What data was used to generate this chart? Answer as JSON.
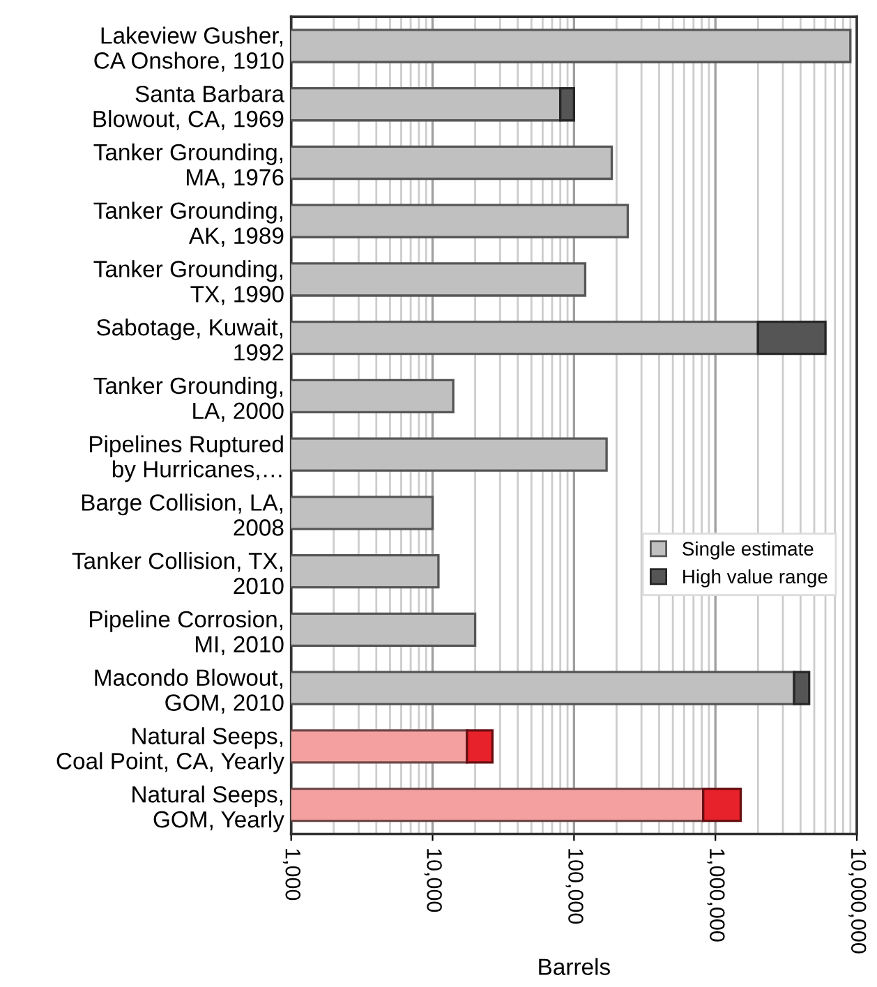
{
  "chart_data": {
    "type": "bar",
    "orientation": "horizontal",
    "stacked": true,
    "log": "x",
    "xlabel": "Barrels",
    "categories": [
      "Lakeview Gusher,\nCA Onshore, 1910",
      "Santa Barbara\nBlowout, CA, 1969",
      "Tanker Grounding,\nMA, 1976",
      "Tanker Grounding,\nAK, 1989",
      "Tanker Grounding,\nTX, 1990",
      "Sabotage, Kuwait,\n1992",
      "Tanker Grounding,\nLA, 2000",
      "Pipelines Ruptured\nby Hurricanes,…",
      "Barge Collision, LA,\n2008",
      "Tanker Collision, TX,\n2010",
      "Pipeline Corrosion,\nMI, 2010",
      "Macondo Blowout,\nGOM, 2010",
      "Natural Seeps,\nCoal Point, CA, Yearly",
      "Natural Seeps,\nGOM, Yearly"
    ],
    "series": [
      {
        "name": "Single estimate",
        "color": "#c0c0c0",
        "colors": [
          "#c0c0c0",
          "#c0c0c0",
          "#c0c0c0",
          "#c0c0c0",
          "#c0c0c0",
          "#c0c0c0",
          "#c0c0c0",
          "#c0c0c0",
          "#c0c0c0",
          "#c0c0c0",
          "#c0c0c0",
          "#c0c0c0",
          "#f4a0a0",
          "#f4a0a0"
        ],
        "values": [
          9000000,
          80000,
          185000,
          240000,
          120000,
          2000000,
          14000,
          170000,
          10000,
          11000,
          20000,
          3600000,
          17500,
          820000
        ]
      },
      {
        "name": "High value range",
        "color": "#555555",
        "colors": [
          "#555555",
          "#555555",
          "#555555",
          "#555555",
          "#555555",
          "#555555",
          "#555555",
          "#555555",
          "#555555",
          "#555555",
          "#555555",
          "#555555",
          "#e8222a",
          "#e8222a"
        ],
        "values": [
          null,
          20000,
          null,
          null,
          null,
          4000000,
          null,
          null,
          null,
          null,
          null,
          1000000,
          9000,
          690000
        ]
      }
    ],
    "xlim": [
      1000,
      10000000
    ],
    "xticks": [
      {
        "value": 1000,
        "label": "1,000"
      },
      {
        "value": 10000,
        "label": "10,000"
      },
      {
        "value": 100000,
        "label": "100,000"
      },
      {
        "value": 1000000,
        "label": "1,000,000"
      },
      {
        "value": 10000000,
        "label": "10,000,000"
      }
    ],
    "grid": "x",
    "legend": "right"
  }
}
